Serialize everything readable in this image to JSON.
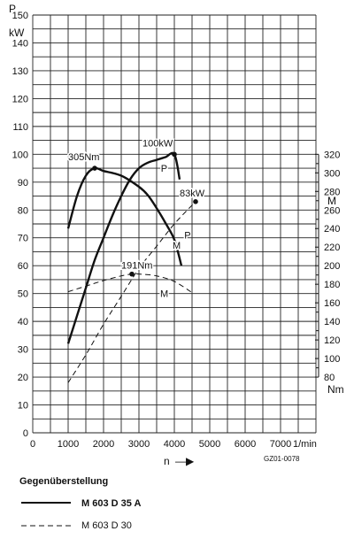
{
  "chart_data": {
    "type": "line",
    "axes": {
      "left": {
        "label": "P",
        "unit": "kW",
        "min": 0,
        "max": 150,
        "ticks": [
          0,
          10,
          20,
          30,
          40,
          50,
          60,
          70,
          80,
          90,
          100,
          110,
          120,
          130,
          140,
          150
        ]
      },
      "right": {
        "label": "M",
        "unit": "Nm",
        "min": 80,
        "max": 320,
        "ticks": [
          80,
          100,
          120,
          140,
          160,
          180,
          200,
          220,
          240,
          260,
          280,
          300,
          320
        ]
      },
      "bottom": {
        "label": "n",
        "arrow": "—▶",
        "unit": "1/min",
        "min": 0,
        "max": 8000,
        "ticks": [
          0,
          1000,
          2000,
          3000,
          4000,
          5000,
          6000,
          7000
        ],
        "tick_labels": [
          "0",
          "1000",
          "2000",
          "3000",
          "4000",
          "5000",
          "6000",
          "7000"
        ]
      }
    },
    "grid": true,
    "series": [
      {
        "name": "M 603 D 35 A",
        "style": "solid",
        "curve_label": "P",
        "axis": "left",
        "x": [
          1000,
          1250,
          1500,
          1750,
          2000,
          2250,
          2500,
          2750,
          3000,
          3250,
          3500,
          3750,
          4000,
          4150
        ],
        "y": [
          32,
          42,
          52,
          62,
          70,
          78,
          85,
          91,
          95,
          97,
          98,
          99,
          100,
          91
        ]
      },
      {
        "name": "M 603 D 35 A",
        "style": "solid",
        "curve_label": "M",
        "axis": "right",
        "x": [
          1000,
          1250,
          1500,
          1750,
          2000,
          2500,
          3000,
          3250,
          3500,
          3750,
          4000,
          4200
        ],
        "y": [
          240,
          275,
          297,
          305,
          302,
          297,
          285,
          276,
          262,
          246,
          228,
          200
        ]
      },
      {
        "name": "M 603 D 30",
        "style": "dashed",
        "curve_label": "P",
        "axis": "left",
        "x": [
          1000,
          1500,
          2000,
          2500,
          3000,
          3500,
          4000,
          4600
        ],
        "y": [
          18,
          28,
          39,
          49,
          59,
          67,
          75,
          83
        ]
      },
      {
        "name": "M 603 D 30",
        "style": "dashed",
        "curve_label": "M",
        "axis": "right",
        "x": [
          1000,
          1500,
          2000,
          2500,
          2800,
          3000,
          3500,
          4000,
          4500
        ],
        "y": [
          172,
          178,
          184,
          189,
          191,
          191,
          189,
          183,
          171
        ]
      }
    ],
    "annotations": [
      {
        "text": "100kW",
        "x": 4000,
        "y": 100,
        "axis": "left"
      },
      {
        "text": "305Nm",
        "x": 1750,
        "y": 305,
        "axis": "right"
      },
      {
        "text": "83kW",
        "x": 4600,
        "y": 83,
        "axis": "left"
      },
      {
        "text": "191Nm",
        "x": 2800,
        "y": 191,
        "axis": "right"
      }
    ],
    "code": "GZ01-0078",
    "legend": {
      "title": "Gegenüberstellung",
      "items": [
        {
          "label": "M 603 D 35 A",
          "style": "solid"
        },
        {
          "label": "M 603 D 30",
          "style": "dashed"
        }
      ]
    }
  }
}
